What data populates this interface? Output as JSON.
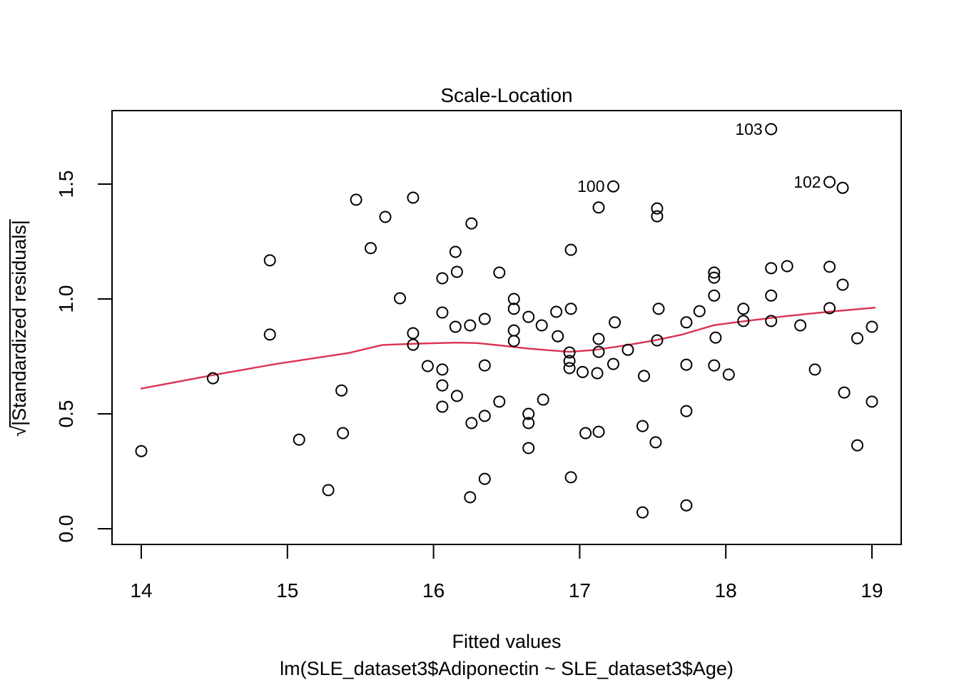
{
  "chart_data": {
    "type": "scatter",
    "title": "Scale-Location",
    "xlabel": "Fitted values",
    "model_label": "lm(SLE_dataset3$Adiponectin ~ SLE_dataset3$Age)",
    "ylabel": "√|Standardized residuals|",
    "xlim": [
      13.8,
      19.2
    ],
    "ylim": [
      -0.07,
      1.81
    ],
    "x_ticks": [
      14,
      15,
      16,
      17,
      18,
      19
    ],
    "y_ticks": [
      0.0,
      0.5,
      1.0,
      1.5
    ],
    "y_tick_labels": [
      "0.0",
      "0.5",
      "1.0",
      "1.5"
    ],
    "grid": false,
    "legend": "none",
    "point_color": "#000000",
    "smooth_color": "#dc3352",
    "points": [
      [
        14.0,
        0.338
      ],
      [
        14.49,
        0.655
      ],
      [
        14.88,
        1.168
      ],
      [
        14.88,
        0.845
      ],
      [
        15.08,
        0.388
      ],
      [
        15.28,
        0.168
      ],
      [
        15.37,
        0.602
      ],
      [
        15.38,
        0.416
      ],
      [
        15.47,
        1.432
      ],
      [
        15.57,
        1.221
      ],
      [
        15.67,
        1.357
      ],
      [
        15.86,
        1.441
      ],
      [
        15.77,
        1.003
      ],
      [
        15.86,
        0.851
      ],
      [
        15.86,
        0.801
      ],
      [
        15.96,
        0.708
      ],
      [
        16.06,
        1.09
      ],
      [
        16.06,
        0.941
      ],
      [
        16.06,
        0.693
      ],
      [
        16.06,
        0.624
      ],
      [
        16.06,
        0.531
      ],
      [
        16.15,
        1.205
      ],
      [
        16.16,
        1.118
      ],
      [
        16.16,
        0.578
      ],
      [
        16.15,
        0.879
      ],
      [
        16.25,
        0.885
      ],
      [
        16.25,
        0.137
      ],
      [
        16.26,
        1.329
      ],
      [
        16.26,
        0.46
      ],
      [
        16.35,
        0.913
      ],
      [
        16.35,
        0.711
      ],
      [
        16.35,
        0.491
      ],
      [
        16.35,
        0.217
      ],
      [
        16.45,
        1.115
      ],
      [
        16.45,
        0.553
      ],
      [
        16.55,
        1.0
      ],
      [
        16.55,
        0.957
      ],
      [
        16.55,
        0.863
      ],
      [
        16.55,
        0.817
      ],
      [
        16.65,
        0.922
      ],
      [
        16.65,
        0.5
      ],
      [
        16.65,
        0.46
      ],
      [
        16.65,
        0.351
      ],
      [
        16.74,
        0.885
      ],
      [
        16.75,
        0.562
      ],
      [
        16.84,
        0.944
      ],
      [
        16.85,
        0.838
      ],
      [
        16.94,
        1.214
      ],
      [
        16.94,
        0.957
      ],
      [
        16.93,
        0.767
      ],
      [
        16.93,
        0.73
      ],
      [
        16.93,
        0.699
      ],
      [
        16.94,
        0.224
      ],
      [
        17.02,
        0.682
      ],
      [
        17.12,
        0.677
      ],
      [
        17.04,
        0.416
      ],
      [
        17.13,
        0.422
      ],
      [
        17.13,
        1.398
      ],
      [
        17.13,
        0.826
      ],
      [
        17.13,
        0.77
      ],
      [
        17.23,
        1.49
      ],
      [
        17.23,
        0.717
      ],
      [
        17.24,
        0.898
      ],
      [
        17.33,
        0.779
      ],
      [
        17.43,
        0.447
      ],
      [
        17.43,
        0.071
      ],
      [
        17.44,
        0.665
      ],
      [
        17.53,
        1.394
      ],
      [
        17.53,
        1.36
      ],
      [
        17.52,
        0.376
      ],
      [
        17.53,
        0.82
      ],
      [
        17.54,
        0.957
      ],
      [
        17.73,
        0.898
      ],
      [
        17.73,
        0.714
      ],
      [
        17.73,
        0.512
      ],
      [
        17.73,
        0.102
      ],
      [
        17.82,
        0.947
      ],
      [
        17.92,
        1.115
      ],
      [
        17.92,
        1.093
      ],
      [
        17.92,
        1.015
      ],
      [
        17.92,
        0.711
      ],
      [
        17.93,
        0.832
      ],
      [
        18.02,
        0.671
      ],
      [
        18.12,
        0.957
      ],
      [
        18.12,
        0.904
      ],
      [
        18.31,
        1.739
      ],
      [
        18.31,
        1.134
      ],
      [
        18.31,
        1.015
      ],
      [
        18.31,
        0.904
      ],
      [
        18.42,
        1.143
      ],
      [
        18.51,
        0.885
      ],
      [
        18.61,
        0.693
      ],
      [
        18.71,
        1.509
      ],
      [
        18.71,
        1.14
      ],
      [
        18.71,
        0.96
      ],
      [
        18.8,
        1.484
      ],
      [
        18.8,
        1.062
      ],
      [
        18.81,
        0.593
      ],
      [
        18.9,
        0.829
      ],
      [
        18.9,
        0.363
      ],
      [
        19.0,
        0.879
      ],
      [
        19.0,
        0.553
      ]
    ],
    "bold_point_index": 39,
    "labeled_points": [
      {
        "label": "103",
        "x": 18.31,
        "y": 1.739
      },
      {
        "label": "100",
        "x": 17.23,
        "y": 1.49
      },
      {
        "label": "102",
        "x": 18.71,
        "y": 1.509
      }
    ],
    "smooth_line": [
      [
        14.0,
        0.61
      ],
      [
        14.5,
        0.67
      ],
      [
        14.93,
        0.718
      ],
      [
        15.42,
        0.765
      ],
      [
        15.65,
        0.8
      ],
      [
        15.9,
        0.806
      ],
      [
        16.16,
        0.81
      ],
      [
        16.3,
        0.808
      ],
      [
        16.45,
        0.798
      ],
      [
        16.65,
        0.784
      ],
      [
        16.93,
        0.77
      ],
      [
        17.1,
        0.778
      ],
      [
        17.3,
        0.797
      ],
      [
        17.5,
        0.818
      ],
      [
        17.7,
        0.845
      ],
      [
        17.92,
        0.886
      ],
      [
        18.16,
        0.906
      ],
      [
        18.41,
        0.925
      ],
      [
        18.7,
        0.944
      ],
      [
        19.02,
        0.962
      ]
    ]
  }
}
